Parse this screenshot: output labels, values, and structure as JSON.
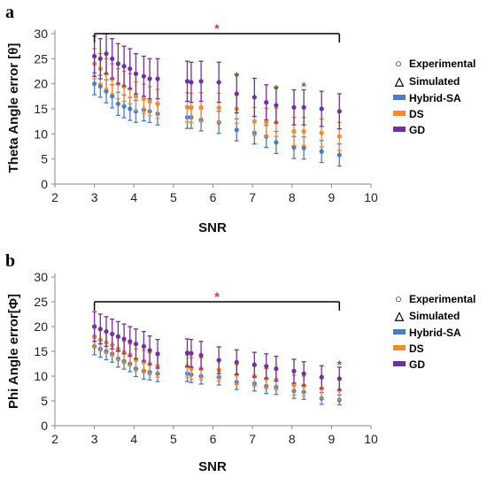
{
  "colors": {
    "hybrid": "#4a7cc9",
    "ds": "#f28a2e",
    "gd": "#7030a0",
    "sig_red": "#e03030",
    "sig_green": "#3a8a2a",
    "legend_marker": "#1f3864"
  },
  "chart_data": [
    {
      "type": "scatter",
      "panel_letter": "a",
      "ylabel": "Theta Angle error [θ]",
      "xlabel": "SNR",
      "xlim": [
        2,
        10
      ],
      "ylim": [
        0,
        30
      ],
      "xticks": [
        2,
        3,
        4,
        5,
        6,
        7,
        8,
        9,
        10
      ],
      "yticks": [
        0,
        5,
        10,
        15,
        20,
        25,
        30
      ],
      "grid": false,
      "legend_position": "right",
      "legend": [
        "Experimental",
        "Simulated",
        "Hybrid-SA",
        "DS",
        "GD"
      ],
      "x": [
        3.0,
        3.15,
        3.3,
        3.45,
        3.6,
        3.75,
        3.9,
        4.05,
        4.25,
        4.4,
        4.6,
        5.35,
        5.45,
        5.7,
        6.15,
        6.6,
        7.05,
        7.35,
        7.6,
        8.05,
        8.3,
        8.75,
        9.2
      ],
      "significance_bracket": {
        "x_from": 3.0,
        "x_to": 9.2,
        "y": 30,
        "label": "*"
      },
      "extra_stars": [
        {
          "x": 6.6,
          "y": 21.5,
          "label": "*"
        },
        {
          "x": 7.6,
          "y": 19,
          "label": "*"
        },
        {
          "x": 8.3,
          "y": 19.5,
          "label": "*"
        }
      ],
      "series": [
        {
          "name": "Hybrid-SA",
          "color_key": "hybrid",
          "values": [
            20,
            19.5,
            18.5,
            17.5,
            16,
            15.5,
            15,
            14.5,
            14.8,
            14.5,
            14,
            13.3,
            13.3,
            12.8,
            12.3,
            10.8,
            10.2,
            9.5,
            8.3,
            7.3,
            7.2,
            6.5,
            5.8
          ],
          "err": [
            2.2,
            2.2,
            2.3,
            2.3,
            2.3,
            2.3,
            2.3,
            2.2,
            2.2,
            2.2,
            2.2,
            2.2,
            2.2,
            2.2,
            2.2,
            2.2,
            2.2,
            2.2,
            2.2,
            2.2,
            2.2,
            2.2,
            2.2
          ]
        },
        {
          "name": "DS",
          "color_key": "ds",
          "values": [
            24,
            23,
            22,
            21,
            20,
            19.5,
            19,
            17.5,
            17,
            16.5,
            16,
            15.3,
            15.2,
            15.3,
            15.2,
            15,
            12.5,
            12.3,
            12.3,
            10.5,
            10.5,
            10.2,
            9.5
          ],
          "err": [
            3.0,
            3.0,
            3.0,
            3.0,
            3.0,
            3.0,
            3.0,
            2.9,
            2.9,
            2.9,
            2.9,
            2.9,
            2.9,
            2.9,
            2.9,
            2.9,
            2.8,
            2.8,
            2.8,
            2.8,
            2.8,
            2.8,
            2.8
          ]
        },
        {
          "name": "GD",
          "color_key": "gd",
          "values": [
            25.5,
            25,
            26,
            25,
            24,
            23.5,
            23,
            22,
            21.5,
            21,
            21,
            20.5,
            20.3,
            20.5,
            20.3,
            18,
            17.3,
            16.3,
            15.7,
            15.3,
            15.3,
            15,
            14.5
          ],
          "err": [
            4.0,
            4.0,
            4.0,
            4.0,
            4.0,
            4.0,
            4.0,
            4.0,
            4.0,
            4.0,
            4.0,
            4.0,
            4.0,
            4.0,
            4.0,
            3.8,
            3.8,
            3.5,
            3.5,
            3.5,
            3.5,
            3.5,
            3.5
          ]
        }
      ]
    },
    {
      "type": "scatter",
      "panel_letter": "b",
      "ylabel": "Phi Angle error[Φ]",
      "xlabel": "SNR",
      "xlim": [
        2,
        10
      ],
      "ylim": [
        0,
        30
      ],
      "xticks": [
        2,
        3,
        4,
        5,
        6,
        7,
        8,
        9,
        10
      ],
      "yticks": [
        0,
        5,
        10,
        15,
        20,
        25,
        30
      ],
      "grid": false,
      "legend_position": "right",
      "legend": [
        "Experimental",
        "Simulated",
        "Hybrid-SA",
        "DS",
        "GD"
      ],
      "x": [
        3.0,
        3.15,
        3.3,
        3.45,
        3.6,
        3.75,
        3.9,
        4.05,
        4.25,
        4.4,
        4.6,
        5.35,
        5.45,
        5.7,
        6.15,
        6.6,
        7.05,
        7.35,
        7.6,
        8.05,
        8.3,
        8.75,
        9.2
      ],
      "significance_bracket": {
        "x_from": 3.0,
        "x_to": 9.2,
        "y": 25,
        "label": "*"
      },
      "extra_stars": [
        {
          "x": 9.2,
          "y": 12.3,
          "label": "*"
        }
      ],
      "series": [
        {
          "name": "Hybrid-SA",
          "color_key": "hybrid",
          "values": [
            16,
            15.5,
            15,
            14.5,
            13.5,
            13,
            12.5,
            11.5,
            11,
            10.8,
            10.5,
            10.5,
            10.3,
            10,
            9.8,
            8.8,
            8.5,
            8,
            7.8,
            7,
            6.8,
            5.5,
            5.2
          ],
          "err": [
            1.7,
            1.7,
            1.7,
            1.7,
            1.7,
            1.6,
            1.6,
            1.6,
            1.6,
            1.6,
            1.6,
            1.6,
            1.6,
            1.6,
            1.6,
            1.5,
            1.5,
            1.5,
            1.5,
            1.5,
            1.5,
            1.2,
            1.0
          ]
        },
        {
          "name": "DS",
          "color_key": "ds",
          "values": [
            18,
            17.3,
            16.8,
            16.3,
            15.5,
            14.8,
            14.3,
            13.3,
            13,
            12.5,
            12,
            12,
            11.5,
            11.5,
            11.2,
            10.3,
            10,
            9.5,
            9.3,
            8.2,
            8,
            7.5,
            7.2
          ],
          "err": [
            2.2,
            2.2,
            2.2,
            2.2,
            2.2,
            2.2,
            2.2,
            2.2,
            2.2,
            2.2,
            2.2,
            2.2,
            2.2,
            2.2,
            2.2,
            2.0,
            2.0,
            2.0,
            2.0,
            2.0,
            2.0,
            2.0,
            2.0
          ]
        },
        {
          "name": "GD",
          "color_key": "gd",
          "values": [
            20,
            19.5,
            19,
            18.5,
            18,
            17.5,
            17,
            16.5,
            16,
            15.2,
            14.5,
            14.7,
            14.6,
            14.2,
            13.2,
            12.8,
            12.3,
            12,
            11.5,
            11,
            10.5,
            9.8,
            9.5
          ],
          "err": [
            3.0,
            3.0,
            3.0,
            3.0,
            3.0,
            3.0,
            3.0,
            3.0,
            3.0,
            2.9,
            2.9,
            2.8,
            2.8,
            2.8,
            2.7,
            2.5,
            2.5,
            2.5,
            2.5,
            2.4,
            2.4,
            2.3,
            2.3
          ]
        }
      ]
    }
  ]
}
